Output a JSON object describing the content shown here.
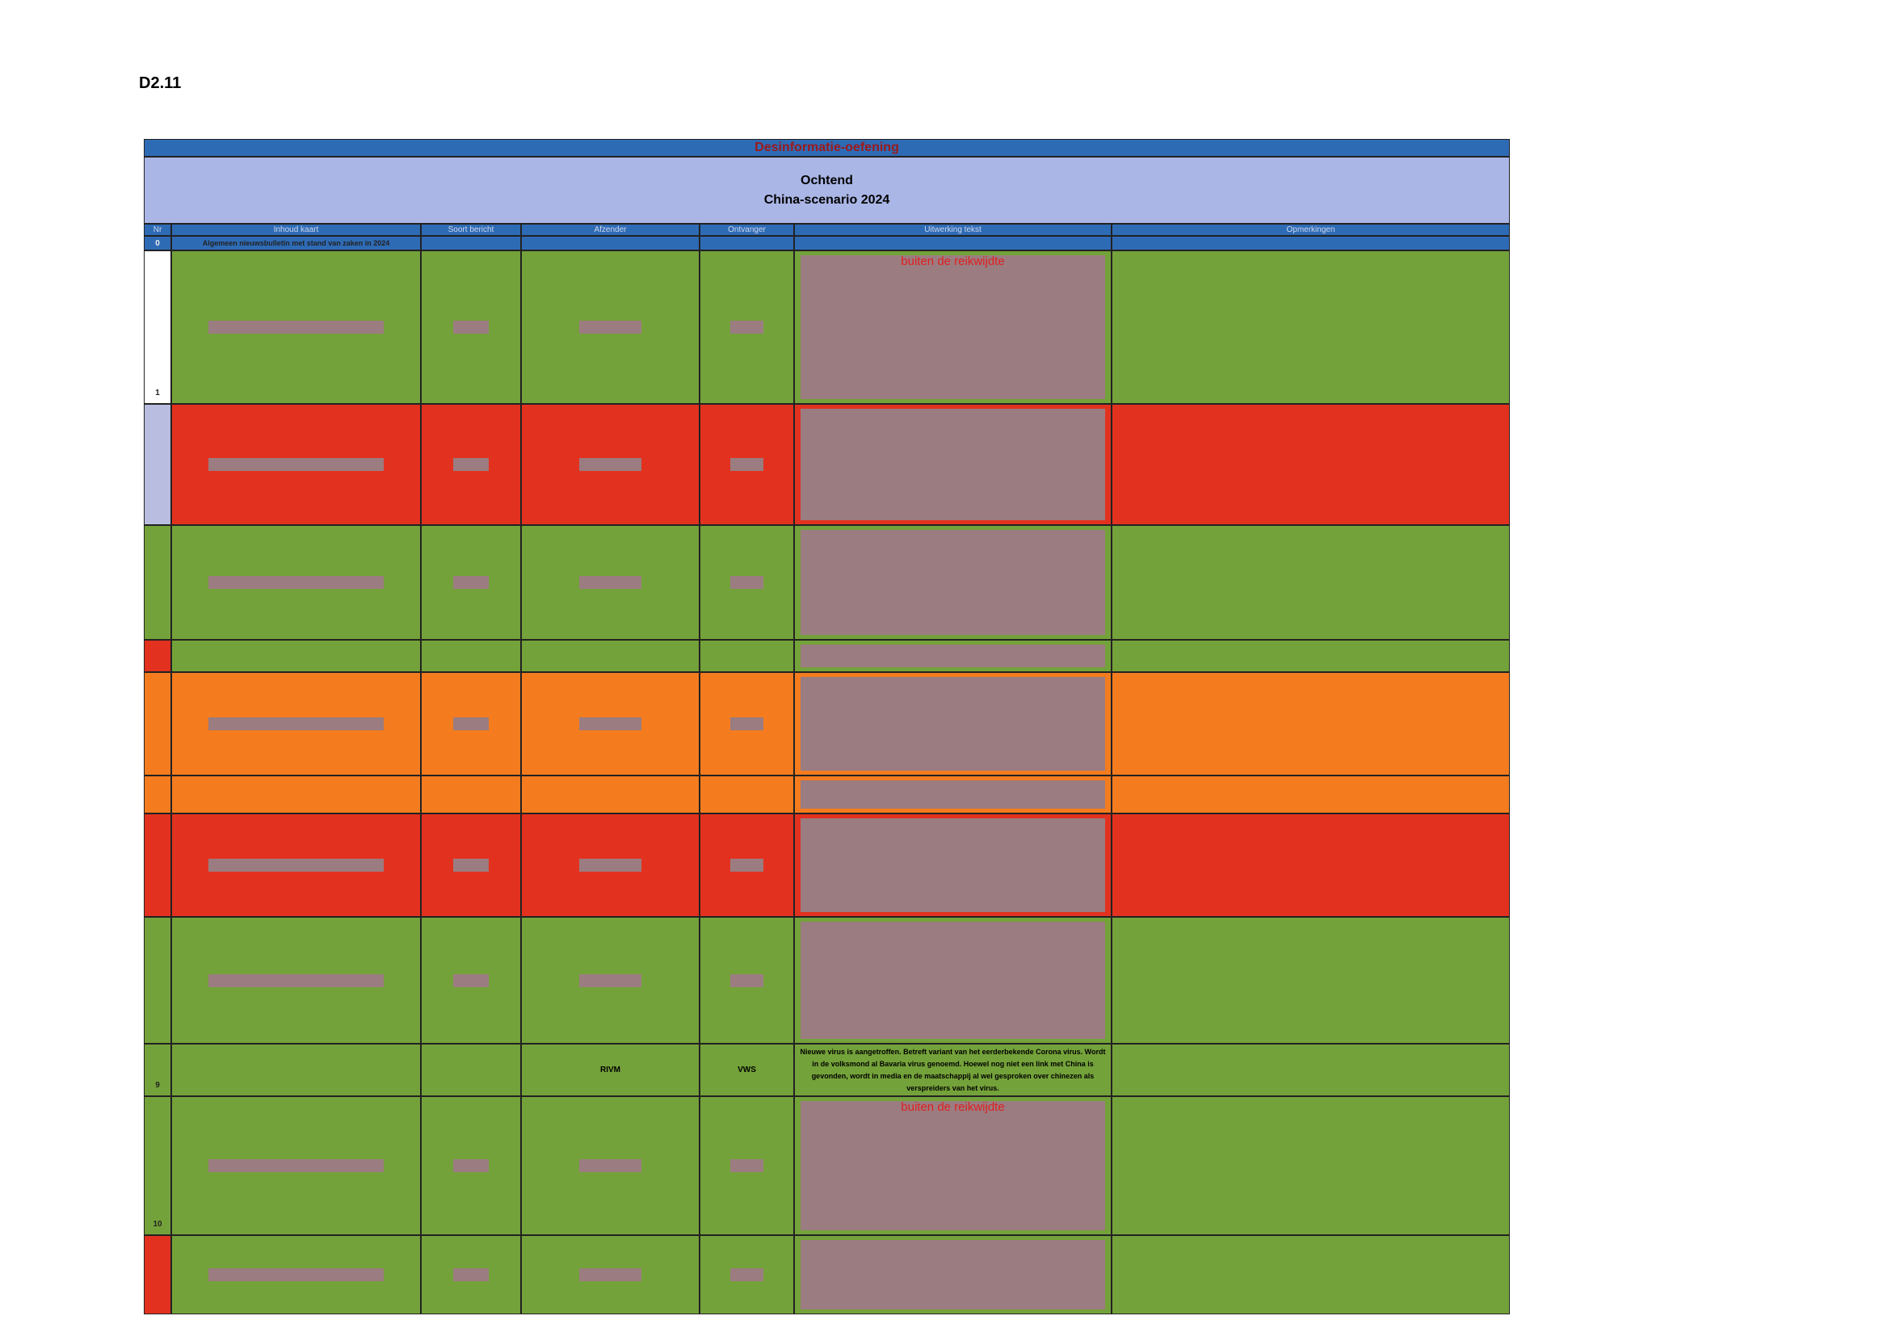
{
  "header": {
    "code": "D2.11"
  },
  "table": {
    "title": "Desinformatie-oefening",
    "subtitle": [
      "Ochtend",
      "China-scenario 2024"
    ],
    "columns": [
      "Nr",
      "Inhoud kaart",
      "Soort bericht",
      "Afzender",
      "Ontvanger",
      "Uitwerking tekst",
      "Opmerkingen"
    ],
    "rows": [
      {
        "nr": "0",
        "content": "Algemeen nieuwsbulletin met stand van zaken in 2024"
      },
      {
        "nr": "1",
        "note": "buiten de reikwijdte"
      },
      {
        "nr": "9",
        "sender": "RIVM",
        "receiver": "VWS",
        "text": "Nieuwe virus is aangetroffen. Betreft variant van het eerderbekende Corona virus. Wordt in de volksmond al Bavaria virus genoemd. Hoewel nog niet een link met China is gevonden, wordt in media en de maatschappij al wel gesproken over chinezen als verspreiders van het virus."
      },
      {
        "nr": "10",
        "note": "buiten de reikwijdte"
      }
    ]
  }
}
